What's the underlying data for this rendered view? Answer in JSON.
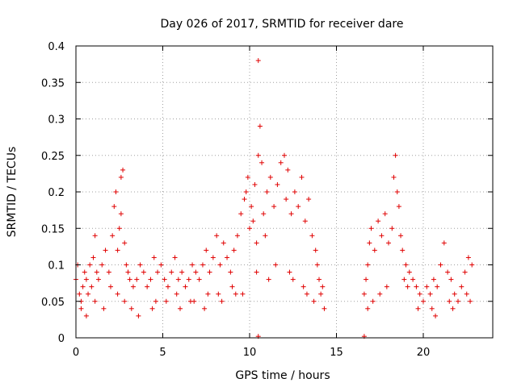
{
  "chart_data": {
    "type": "scatter",
    "title": "Day 026 of 2017, SRMTID for receiver dare",
    "xlabel": "GPS time / hours",
    "ylabel": "SRMTID / TECUs",
    "xlim": [
      0,
      24
    ],
    "ylim": [
      0,
      0.4
    ],
    "xticks": [
      0,
      5,
      10,
      15,
      20
    ],
    "xtick_labels": [
      "0",
      "5",
      "10",
      "15",
      "20"
    ],
    "yticks": [
      0,
      0.05,
      0.1,
      0.15,
      0.2,
      0.25,
      0.3,
      0.35,
      0.4
    ],
    "ytick_labels": [
      "0",
      "0.05",
      "0.1",
      "0.15",
      "0.2",
      "0.25",
      "0.3",
      "0.35",
      "0.4"
    ],
    "grid": true,
    "marker": "+",
    "color": "#e00000",
    "series": [
      {
        "name": "SRMTID",
        "x": [
          0.0,
          0.1,
          0.2,
          0.3,
          0.4,
          0.5,
          0.6,
          0.7,
          0.8,
          0.9,
          1.0,
          1.1,
          1.2,
          1.3,
          1.5,
          1.7,
          1.9,
          2.0,
          2.1,
          2.2,
          2.3,
          2.4,
          2.5,
          2.6,
          2.6,
          2.7,
          2.8,
          2.9,
          3.0,
          3.1,
          3.3,
          3.5,
          3.7,
          3.9,
          4.1,
          4.3,
          4.5,
          4.7,
          4.9,
          5.1,
          5.3,
          5.5,
          5.7,
          5.9,
          6.1,
          6.3,
          6.5,
          6.7,
          6.9,
          7.1,
          7.3,
          7.5,
          7.7,
          7.9,
          8.1,
          8.3,
          8.5,
          8.7,
          8.9,
          9.1,
          9.3,
          9.5,
          9.7,
          9.8,
          9.9,
          10.0,
          10.1,
          10.2,
          10.3,
          10.4,
          10.5,
          10.5,
          10.6,
          10.7,
          10.8,
          10.9,
          11.0,
          11.2,
          11.4,
          11.6,
          11.8,
          12.0,
          12.1,
          12.2,
          12.4,
          12.6,
          12.8,
          13.0,
          13.2,
          13.4,
          13.6,
          13.8,
          13.9,
          14.0,
          14.1,
          14.2,
          16.6,
          16.7,
          16.8,
          16.9,
          17.0,
          17.2,
          17.4,
          17.6,
          17.8,
          18.0,
          18.2,
          18.3,
          18.4,
          18.5,
          18.6,
          18.7,
          18.8,
          19.0,
          19.2,
          19.4,
          19.6,
          19.8,
          20.0,
          20.2,
          20.4,
          20.6,
          20.8,
          21.0,
          21.2,
          21.4,
          21.6,
          21.8,
          22.0,
          22.2,
          22.4,
          22.6,
          22.8,
          10.5,
          16.6,
          0.3,
          1.1,
          2.4,
          3.2,
          4.6,
          5.8,
          6.6,
          7.4,
          8.2,
          9.0,
          9.6,
          11.1,
          12.3,
          13.1,
          13.7,
          17.1,
          17.5,
          19.1,
          20.5,
          21.5,
          22.5,
          0.6,
          1.6,
          2.8,
          3.6,
          4.4,
          5.2,
          6.0,
          6.8,
          7.6,
          8.4,
          9.2,
          10.4,
          11.5,
          12.5,
          13.3,
          14.3,
          16.8,
          17.9,
          18.9,
          19.7,
          20.7,
          21.7,
          22.7
        ],
        "y": [
          0.08,
          0.1,
          0.06,
          0.05,
          0.07,
          0.09,
          0.08,
          0.06,
          0.1,
          0.07,
          0.11,
          0.14,
          0.09,
          0.08,
          0.1,
          0.12,
          0.09,
          0.07,
          0.14,
          0.18,
          0.2,
          0.12,
          0.15,
          0.17,
          0.22,
          0.23,
          0.13,
          0.1,
          0.09,
          0.08,
          0.07,
          0.08,
          0.1,
          0.09,
          0.07,
          0.08,
          0.11,
          0.09,
          0.1,
          0.08,
          0.07,
          0.09,
          0.11,
          0.08,
          0.09,
          0.07,
          0.08,
          0.1,
          0.09,
          0.08,
          0.1,
          0.12,
          0.09,
          0.11,
          0.14,
          0.1,
          0.13,
          0.11,
          0.09,
          0.12,
          0.14,
          0.17,
          0.19,
          0.2,
          0.22,
          0.15,
          0.18,
          0.16,
          0.21,
          0.13,
          0.25,
          0.38,
          0.29,
          0.24,
          0.17,
          0.14,
          0.2,
          0.22,
          0.18,
          0.21,
          0.24,
          0.25,
          0.19,
          0.23,
          0.17,
          0.2,
          0.18,
          0.22,
          0.16,
          0.19,
          0.14,
          0.12,
          0.1,
          0.08,
          0.06,
          0.07,
          0.06,
          0.08,
          0.1,
          0.13,
          0.15,
          0.12,
          0.16,
          0.14,
          0.17,
          0.13,
          0.15,
          0.22,
          0.25,
          0.2,
          0.18,
          0.14,
          0.12,
          0.1,
          0.09,
          0.08,
          0.07,
          0.06,
          0.05,
          0.07,
          0.06,
          0.08,
          0.07,
          0.1,
          0.13,
          0.09,
          0.08,
          0.06,
          0.05,
          0.07,
          0.09,
          0.11,
          0.1,
          0.002,
          0.002,
          0.04,
          0.05,
          0.06,
          0.04,
          0.05,
          0.06,
          0.05,
          0.04,
          0.06,
          0.07,
          0.06,
          0.08,
          0.09,
          0.07,
          0.05,
          0.05,
          0.06,
          0.07,
          0.04,
          0.05,
          0.06,
          0.03,
          0.04,
          0.05,
          0.03,
          0.04,
          0.05,
          0.04,
          0.05,
          0.06,
          0.05,
          0.06,
          0.09,
          0.1,
          0.08,
          0.06,
          0.04,
          0.04,
          0.07,
          0.08,
          0.04,
          0.03,
          0.04,
          0.05
        ]
      }
    ]
  }
}
